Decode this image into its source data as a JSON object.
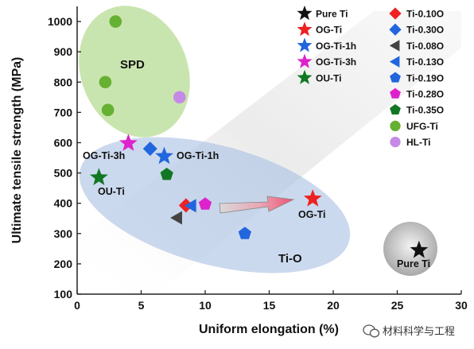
{
  "chart_data": {
    "type": "scatter",
    "xlabel": "Uniform elongation (%)",
    "ylabel": "Ultimate tensile strength (MPa)",
    "xlim": [
      0,
      30
    ],
    "ylim": [
      100,
      1050
    ],
    "x_ticks": [
      "0",
      "5",
      "10",
      "15",
      "20",
      "25",
      "30"
    ],
    "y_ticks": [
      "100",
      "200",
      "300",
      "400",
      "500",
      "600",
      "700",
      "800",
      "900",
      "1000"
    ],
    "grid": false,
    "legend_placement": "top-right",
    "regions": [
      {
        "label": "SPD",
        "color": "#9ccf6e"
      },
      {
        "label": "Ti-O",
        "color": "#a9bfe3"
      },
      {
        "label": "Pure Ti",
        "color": "#b5b5b5"
      }
    ],
    "series": [
      {
        "name": "Pure Ti",
        "marker": "star",
        "color": "#111111",
        "points": [
          [
            26.7,
            245
          ]
        ]
      },
      {
        "name": "OG-Ti",
        "marker": "star",
        "color": "#ee2222",
        "points": [
          [
            18.4,
            415
          ]
        ]
      },
      {
        "name": "OG-Ti-1h",
        "marker": "star",
        "color": "#2266dd",
        "points": [
          [
            6.8,
            555
          ]
        ]
      },
      {
        "name": "OG-Ti-3h",
        "marker": "star",
        "color": "#dd22cc",
        "points": [
          [
            4.0,
            598
          ]
        ]
      },
      {
        "name": "OU-Ti",
        "marker": "star",
        "color": "#117722",
        "points": [
          [
            1.7,
            485
          ]
        ]
      },
      {
        "name": "Ti-0.10O",
        "marker": "diamond",
        "color": "#ee2222",
        "points": [
          [
            8.5,
            393
          ]
        ]
      },
      {
        "name": "Ti-0.30O",
        "marker": "diamond",
        "color": "#2266dd",
        "points": [
          [
            5.7,
            580
          ]
        ]
      },
      {
        "name": "Ti-0.08O",
        "marker": "tri-left",
        "color": "#444444",
        "points": [
          [
            7.8,
            352
          ]
        ]
      },
      {
        "name": "Ti-0.13O",
        "marker": "tri-left",
        "color": "#2266dd",
        "points": [
          [
            8.9,
            392
          ]
        ]
      },
      {
        "name": "Ti-0.19O",
        "marker": "pentagon",
        "color": "#2266dd",
        "points": [
          [
            13.1,
            300
          ]
        ]
      },
      {
        "name": "Ti-0.28O",
        "marker": "pentagon",
        "color": "#dd22cc",
        "points": [
          [
            10.0,
            397
          ]
        ]
      },
      {
        "name": "Ti-0.35O",
        "marker": "pentagon",
        "color": "#117722",
        "points": [
          [
            7.0,
            495
          ]
        ]
      },
      {
        "name": "UFG-Ti",
        "marker": "circle",
        "color": "#66b032",
        "points": [
          [
            3.0,
            1000
          ],
          [
            2.2,
            800
          ],
          [
            2.4,
            708
          ]
        ]
      },
      {
        "name": "HL-Ti",
        "marker": "circle",
        "color": "#c58ae6",
        "points": [
          [
            8.0,
            750
          ]
        ]
      }
    ],
    "annotations": [
      {
        "text": "OG-Ti-3h"
      },
      {
        "text": "OG-Ti-1h"
      },
      {
        "text": "OU-Ti"
      },
      {
        "text": "OG-Ti"
      },
      {
        "text": "Pure Ti"
      }
    ]
  },
  "watermark": {
    "text": "材料科学与工程",
    "icon": "wechat-icon"
  }
}
